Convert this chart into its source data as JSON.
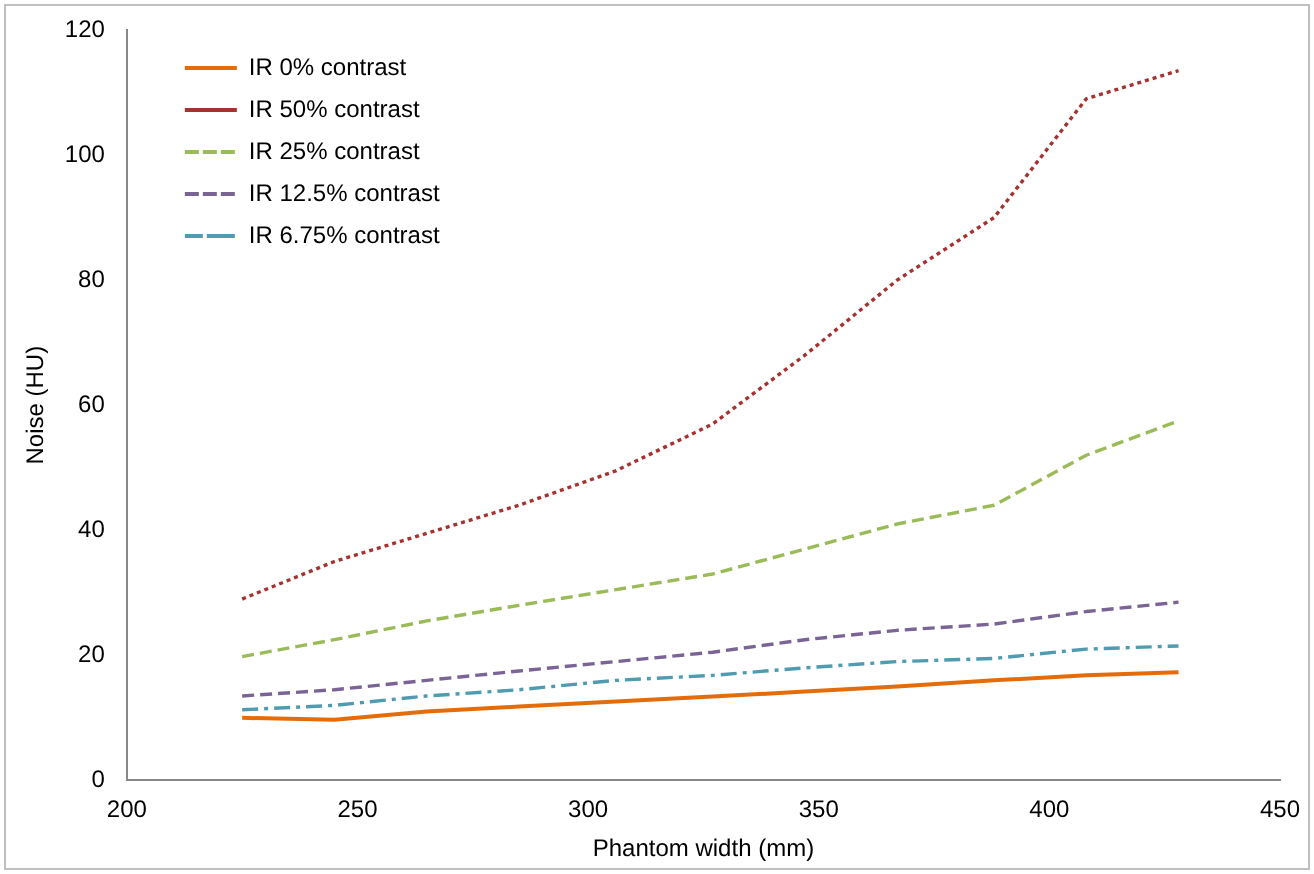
{
  "chart_data": {
    "type": "line",
    "xlabel": "Phantom width (mm)",
    "ylabel": "Noise (HU)",
    "x": [
      225,
      245,
      265,
      285,
      306,
      327,
      347,
      367,
      388,
      408,
      428
    ],
    "xlim": [
      200,
      450
    ],
    "xticks": [
      200,
      250,
      300,
      350,
      400,
      450
    ],
    "ylim": [
      0,
      120
    ],
    "yticks": [
      0,
      20,
      40,
      60,
      80,
      100,
      120
    ],
    "grid": false,
    "legend": "top left",
    "marker": "none",
    "series": [
      {
        "name": "IR 0% contrast",
        "color": "#e46c0a",
        "line_style": "solid",
        "values": [
          10,
          9.7,
          11,
          11.8,
          12.6,
          13.4,
          14.2,
          15,
          16,
          16.8,
          17.3
        ]
      },
      {
        "name": "IR 50% contrast",
        "color": "#a5322f",
        "line_style": "dotted",
        "values": [
          29,
          35,
          39.5,
          44,
          49.5,
          57,
          68,
          80,
          90,
          109,
          113.5
        ]
      },
      {
        "name": "IR 25% contrast",
        "color": "#9bbb59",
        "line_style": "dashed",
        "values": [
          19.8,
          22.5,
          25.5,
          28,
          30.5,
          33,
          37,
          41,
          44,
          52,
          57.5
        ]
      },
      {
        "name": "IR 12.5% contrast",
        "color": "#7a6496",
        "line_style": "dashed",
        "values": [
          13.5,
          14.5,
          16,
          17.5,
          19,
          20.5,
          22.5,
          24,
          25,
          27,
          28.5
        ]
      },
      {
        "name": "IR 6.75% contrast",
        "color": "#4f9bb0",
        "line_style": "dashdot",
        "values": [
          11.3,
          12,
          13.5,
          14.5,
          16,
          16.8,
          18,
          19,
          19.5,
          21,
          21.5
        ]
      }
    ]
  }
}
